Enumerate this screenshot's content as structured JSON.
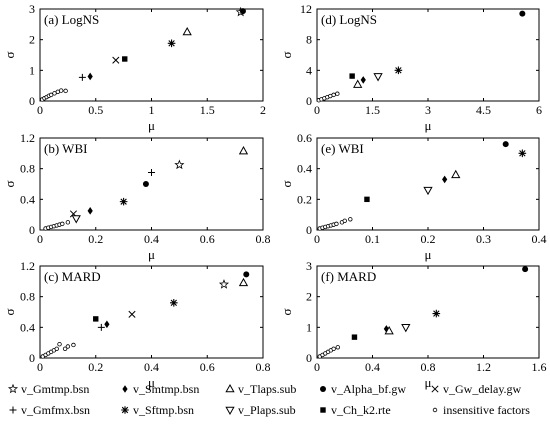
{
  "chart_data": [
    {
      "type": "scatter",
      "panel": "a",
      "title": "(a) LogNS",
      "xlabel": "μ",
      "ylabel": "σ",
      "xlim": [
        0,
        2
      ],
      "ylim": [
        0,
        3
      ],
      "xticks": [
        "0",
        "0.5",
        "1",
        "1.5",
        "2"
      ],
      "yticks": [
        "0",
        "1",
        "2",
        "3"
      ],
      "points": [
        {
          "factor": "v_Gmtmp.bsn",
          "x": 1.8,
          "y": 2.9
        },
        {
          "factor": "v_Alpha_bf.gw",
          "x": 1.82,
          "y": 2.93
        },
        {
          "factor": "v_Tlaps.sub",
          "x": 1.32,
          "y": 2.25
        },
        {
          "factor": "v_Sftmp.bsn",
          "x": 1.18,
          "y": 1.88
        },
        {
          "factor": "v_Ch_k2.rte",
          "x": 0.76,
          "y": 1.37
        },
        {
          "factor": "v_Gw_delay.gw",
          "x": 0.68,
          "y": 1.33
        },
        {
          "factor": "v_Smtmp.bsn",
          "x": 0.45,
          "y": 0.8
        },
        {
          "factor": "v_Gmfmx.bsn",
          "x": 0.38,
          "y": 0.77
        },
        {
          "factor": "insensitive factors",
          "x": 0.02,
          "y": 0.05
        },
        {
          "factor": "insensitive factors",
          "x": 0.04,
          "y": 0.09
        },
        {
          "factor": "insensitive factors",
          "x": 0.06,
          "y": 0.13
        },
        {
          "factor": "insensitive factors",
          "x": 0.08,
          "y": 0.17
        },
        {
          "factor": "insensitive factors",
          "x": 0.1,
          "y": 0.2
        },
        {
          "factor": "insensitive factors",
          "x": 0.13,
          "y": 0.25
        },
        {
          "factor": "insensitive factors",
          "x": 0.16,
          "y": 0.3
        },
        {
          "factor": "insensitive factors",
          "x": 0.19,
          "y": 0.34
        },
        {
          "factor": "insensitive factors",
          "x": 0.23,
          "y": 0.33
        }
      ]
    },
    {
      "type": "scatter",
      "panel": "d",
      "title": "(d) LogNS",
      "xlabel": "μ",
      "ylabel": "σ",
      "xlim": [
        0,
        6
      ],
      "ylim": [
        0,
        12
      ],
      "xticks": [
        "0",
        "1.5",
        "3",
        "4.5",
        "6"
      ],
      "yticks": [
        "0",
        "4",
        "8",
        "12"
      ],
      "points": [
        {
          "factor": "v_Alpha_bf.gw",
          "x": 5.55,
          "y": 11.4
        },
        {
          "factor": "v_Sftmp.bsn",
          "x": 2.2,
          "y": 4.0
        },
        {
          "factor": "v_Ch_k2.rte",
          "x": 0.95,
          "y": 3.25
        },
        {
          "factor": "v_Plaps.sub",
          "x": 1.65,
          "y": 3.2
        },
        {
          "factor": "v_Smtmp.bsn",
          "x": 1.25,
          "y": 2.75
        },
        {
          "factor": "v_Tlaps.sub",
          "x": 1.1,
          "y": 2.15
        },
        {
          "factor": "insensitive factors",
          "x": 0.05,
          "y": 0.1
        },
        {
          "factor": "insensitive factors",
          "x": 0.12,
          "y": 0.22
        },
        {
          "factor": "insensitive factors",
          "x": 0.2,
          "y": 0.35
        },
        {
          "factor": "insensitive factors",
          "x": 0.28,
          "y": 0.5
        },
        {
          "factor": "insensitive factors",
          "x": 0.36,
          "y": 0.65
        },
        {
          "factor": "insensitive factors",
          "x": 0.45,
          "y": 0.8
        },
        {
          "factor": "insensitive factors",
          "x": 0.55,
          "y": 0.95
        }
      ]
    },
    {
      "type": "scatter",
      "panel": "b",
      "title": "(b) WBI",
      "xlabel": "μ",
      "ylabel": "σ",
      "xlim": [
        0,
        0.8
      ],
      "ylim": [
        0,
        1.2
      ],
      "xticks": [
        "0",
        "0.2",
        "0.4",
        "0.6",
        "0.8"
      ],
      "yticks": [
        "0",
        "0.4",
        "0.8",
        "1.2"
      ],
      "points": [
        {
          "factor": "v_Tlaps.sub",
          "x": 0.73,
          "y": 1.03
        },
        {
          "factor": "v_Gmtmp.bsn",
          "x": 0.5,
          "y": 0.85
        },
        {
          "factor": "v_Gmfmx.bsn",
          "x": 0.4,
          "y": 0.75
        },
        {
          "factor": "v_Alpha_bf.gw",
          "x": 0.38,
          "y": 0.6
        },
        {
          "factor": "v_Sftmp.bsn",
          "x": 0.3,
          "y": 0.37
        },
        {
          "factor": "v_Smtmp.bsn",
          "x": 0.18,
          "y": 0.25
        },
        {
          "factor": "v_Gw_delay.gw",
          "x": 0.12,
          "y": 0.21
        },
        {
          "factor": "v_Plaps.sub",
          "x": 0.13,
          "y": 0.15
        },
        {
          "factor": "insensitive factors",
          "x": 0.02,
          "y": 0.02
        },
        {
          "factor": "insensitive factors",
          "x": 0.03,
          "y": 0.03
        },
        {
          "factor": "insensitive factors",
          "x": 0.04,
          "y": 0.04
        },
        {
          "factor": "insensitive factors",
          "x": 0.05,
          "y": 0.05
        },
        {
          "factor": "insensitive factors",
          "x": 0.06,
          "y": 0.06
        },
        {
          "factor": "insensitive factors",
          "x": 0.07,
          "y": 0.07
        },
        {
          "factor": "insensitive factors",
          "x": 0.08,
          "y": 0.08
        },
        {
          "factor": "insensitive factors",
          "x": 0.1,
          "y": 0.1
        }
      ]
    },
    {
      "type": "scatter",
      "panel": "e",
      "title": "(e) WBI",
      "xlabel": "μ",
      "ylabel": "σ",
      "xlim": [
        0,
        0.4
      ],
      "ylim": [
        0,
        0.6
      ],
      "xticks": [
        "0",
        "0.1",
        "0.2",
        "0.3",
        "0.4"
      ],
      "yticks": [
        "0",
        "0.2",
        "0.4",
        "0.6"
      ],
      "points": [
        {
          "factor": "v_Alpha_bf.gw",
          "x": 0.34,
          "y": 0.56
        },
        {
          "factor": "v_Sftmp.bsn",
          "x": 0.37,
          "y": 0.5
        },
        {
          "factor": "v_Tlaps.sub",
          "x": 0.25,
          "y": 0.36
        },
        {
          "factor": "v_Smtmp.bsn",
          "x": 0.23,
          "y": 0.33
        },
        {
          "factor": "v_Plaps.sub",
          "x": 0.2,
          "y": 0.26
        },
        {
          "factor": "v_Ch_k2.rte",
          "x": 0.09,
          "y": 0.2
        },
        {
          "factor": "insensitive factors",
          "x": 0.005,
          "y": 0.01
        },
        {
          "factor": "insensitive factors",
          "x": 0.01,
          "y": 0.015
        },
        {
          "factor": "insensitive factors",
          "x": 0.015,
          "y": 0.02
        },
        {
          "factor": "insensitive factors",
          "x": 0.02,
          "y": 0.025
        },
        {
          "factor": "insensitive factors",
          "x": 0.025,
          "y": 0.03
        },
        {
          "factor": "insensitive factors",
          "x": 0.03,
          "y": 0.035
        },
        {
          "factor": "insensitive factors",
          "x": 0.035,
          "y": 0.04
        },
        {
          "factor": "insensitive factors",
          "x": 0.045,
          "y": 0.05
        },
        {
          "factor": "insensitive factors",
          "x": 0.05,
          "y": 0.06
        },
        {
          "factor": "insensitive factors",
          "x": 0.06,
          "y": 0.07
        }
      ]
    },
    {
      "type": "scatter",
      "panel": "c",
      "title": "(c) MARD",
      "xlabel": "μ",
      "ylabel": "σ",
      "xlim": [
        0,
        0.8
      ],
      "ylim": [
        0,
        1.2
      ],
      "xticks": [
        "0",
        "0.2",
        "0.4",
        "0.6",
        "0.8"
      ],
      "yticks": [
        "0",
        "0.4",
        "0.8",
        "1.2"
      ],
      "points": [
        {
          "factor": "v_Alpha_bf.gw",
          "x": 0.74,
          "y": 1.09
        },
        {
          "factor": "v_Tlaps.sub",
          "x": 0.73,
          "y": 0.98
        },
        {
          "factor": "v_Gmtmp.bsn",
          "x": 0.66,
          "y": 0.96
        },
        {
          "factor": "v_Sftmp.bsn",
          "x": 0.48,
          "y": 0.72
        },
        {
          "factor": "v_Gw_delay.gw",
          "x": 0.33,
          "y": 0.57
        },
        {
          "factor": "v_Ch_k2.rte",
          "x": 0.2,
          "y": 0.51
        },
        {
          "factor": "v_Smtmp.bsn",
          "x": 0.24,
          "y": 0.44
        },
        {
          "factor": "v_Gmfmx.bsn",
          "x": 0.22,
          "y": 0.4
        },
        {
          "factor": "insensitive factors",
          "x": 0.01,
          "y": 0.02
        },
        {
          "factor": "insensitive factors",
          "x": 0.02,
          "y": 0.04
        },
        {
          "factor": "insensitive factors",
          "x": 0.03,
          "y": 0.06
        },
        {
          "factor": "insensitive factors",
          "x": 0.04,
          "y": 0.08
        },
        {
          "factor": "insensitive factors",
          "x": 0.05,
          "y": 0.1
        },
        {
          "factor": "insensitive factors",
          "x": 0.06,
          "y": 0.12
        },
        {
          "factor": "insensitive factors",
          "x": 0.07,
          "y": 0.18
        },
        {
          "factor": "insensitive factors",
          "x": 0.09,
          "y": 0.12
        },
        {
          "factor": "insensitive factors",
          "x": 0.1,
          "y": 0.15
        },
        {
          "factor": "insensitive factors",
          "x": 0.12,
          "y": 0.17
        }
      ]
    },
    {
      "type": "scatter",
      "panel": "f",
      "title": "(f) MARD",
      "xlabel": "μ",
      "ylabel": "σ",
      "xlim": [
        0,
        1.6
      ],
      "ylim": [
        0,
        3
      ],
      "xticks": [
        "0",
        "0.4",
        "0.8",
        "1.2",
        "1.6"
      ],
      "yticks": [
        "0",
        "1",
        "2",
        "3"
      ],
      "points": [
        {
          "factor": "v_Alpha_bf.gw",
          "x": 1.5,
          "y": 2.9
        },
        {
          "factor": "v_Sftmp.bsn",
          "x": 0.86,
          "y": 1.45
        },
        {
          "factor": "v_Plaps.sub",
          "x": 0.64,
          "y": 1.0
        },
        {
          "factor": "v_Smtmp.bsn",
          "x": 0.5,
          "y": 0.95
        },
        {
          "factor": "v_Tlaps.sub",
          "x": 0.52,
          "y": 0.88
        },
        {
          "factor": "v_Ch_k2.rte",
          "x": 0.27,
          "y": 0.68
        },
        {
          "factor": "insensitive factors",
          "x": 0.02,
          "y": 0.05
        },
        {
          "factor": "insensitive factors",
          "x": 0.04,
          "y": 0.1
        },
        {
          "factor": "insensitive factors",
          "x": 0.06,
          "y": 0.15
        },
        {
          "factor": "insensitive factors",
          "x": 0.08,
          "y": 0.2
        },
        {
          "factor": "insensitive factors",
          "x": 0.1,
          "y": 0.25
        },
        {
          "factor": "insensitive factors",
          "x": 0.12,
          "y": 0.3
        },
        {
          "factor": "insensitive factors",
          "x": 0.15,
          "y": 0.35
        }
      ]
    }
  ],
  "legend": {
    "placement": "bottom",
    "items": [
      {
        "label": "v_Gmtmp.bsn",
        "marker": "star-open"
      },
      {
        "label": "v_Smtmp.bsn",
        "marker": "diamond-filled"
      },
      {
        "label": "v_Tlaps.sub",
        "marker": "triangle-up-open"
      },
      {
        "label": "v_Alpha_bf.gw",
        "marker": "circle-filled"
      },
      {
        "label": "v_Gw_delay.gw",
        "marker": "cross-x"
      },
      {
        "label": "v_Gmfmx.bsn",
        "marker": "plus"
      },
      {
        "label": "v_Sftmp.bsn",
        "marker": "asterisk"
      },
      {
        "label": "v_Plaps.sub",
        "marker": "triangle-down-open"
      },
      {
        "label": "v_Ch_k2.rte",
        "marker": "square-filled"
      },
      {
        "label": "insensitive factors",
        "marker": "circle-open"
      }
    ]
  }
}
